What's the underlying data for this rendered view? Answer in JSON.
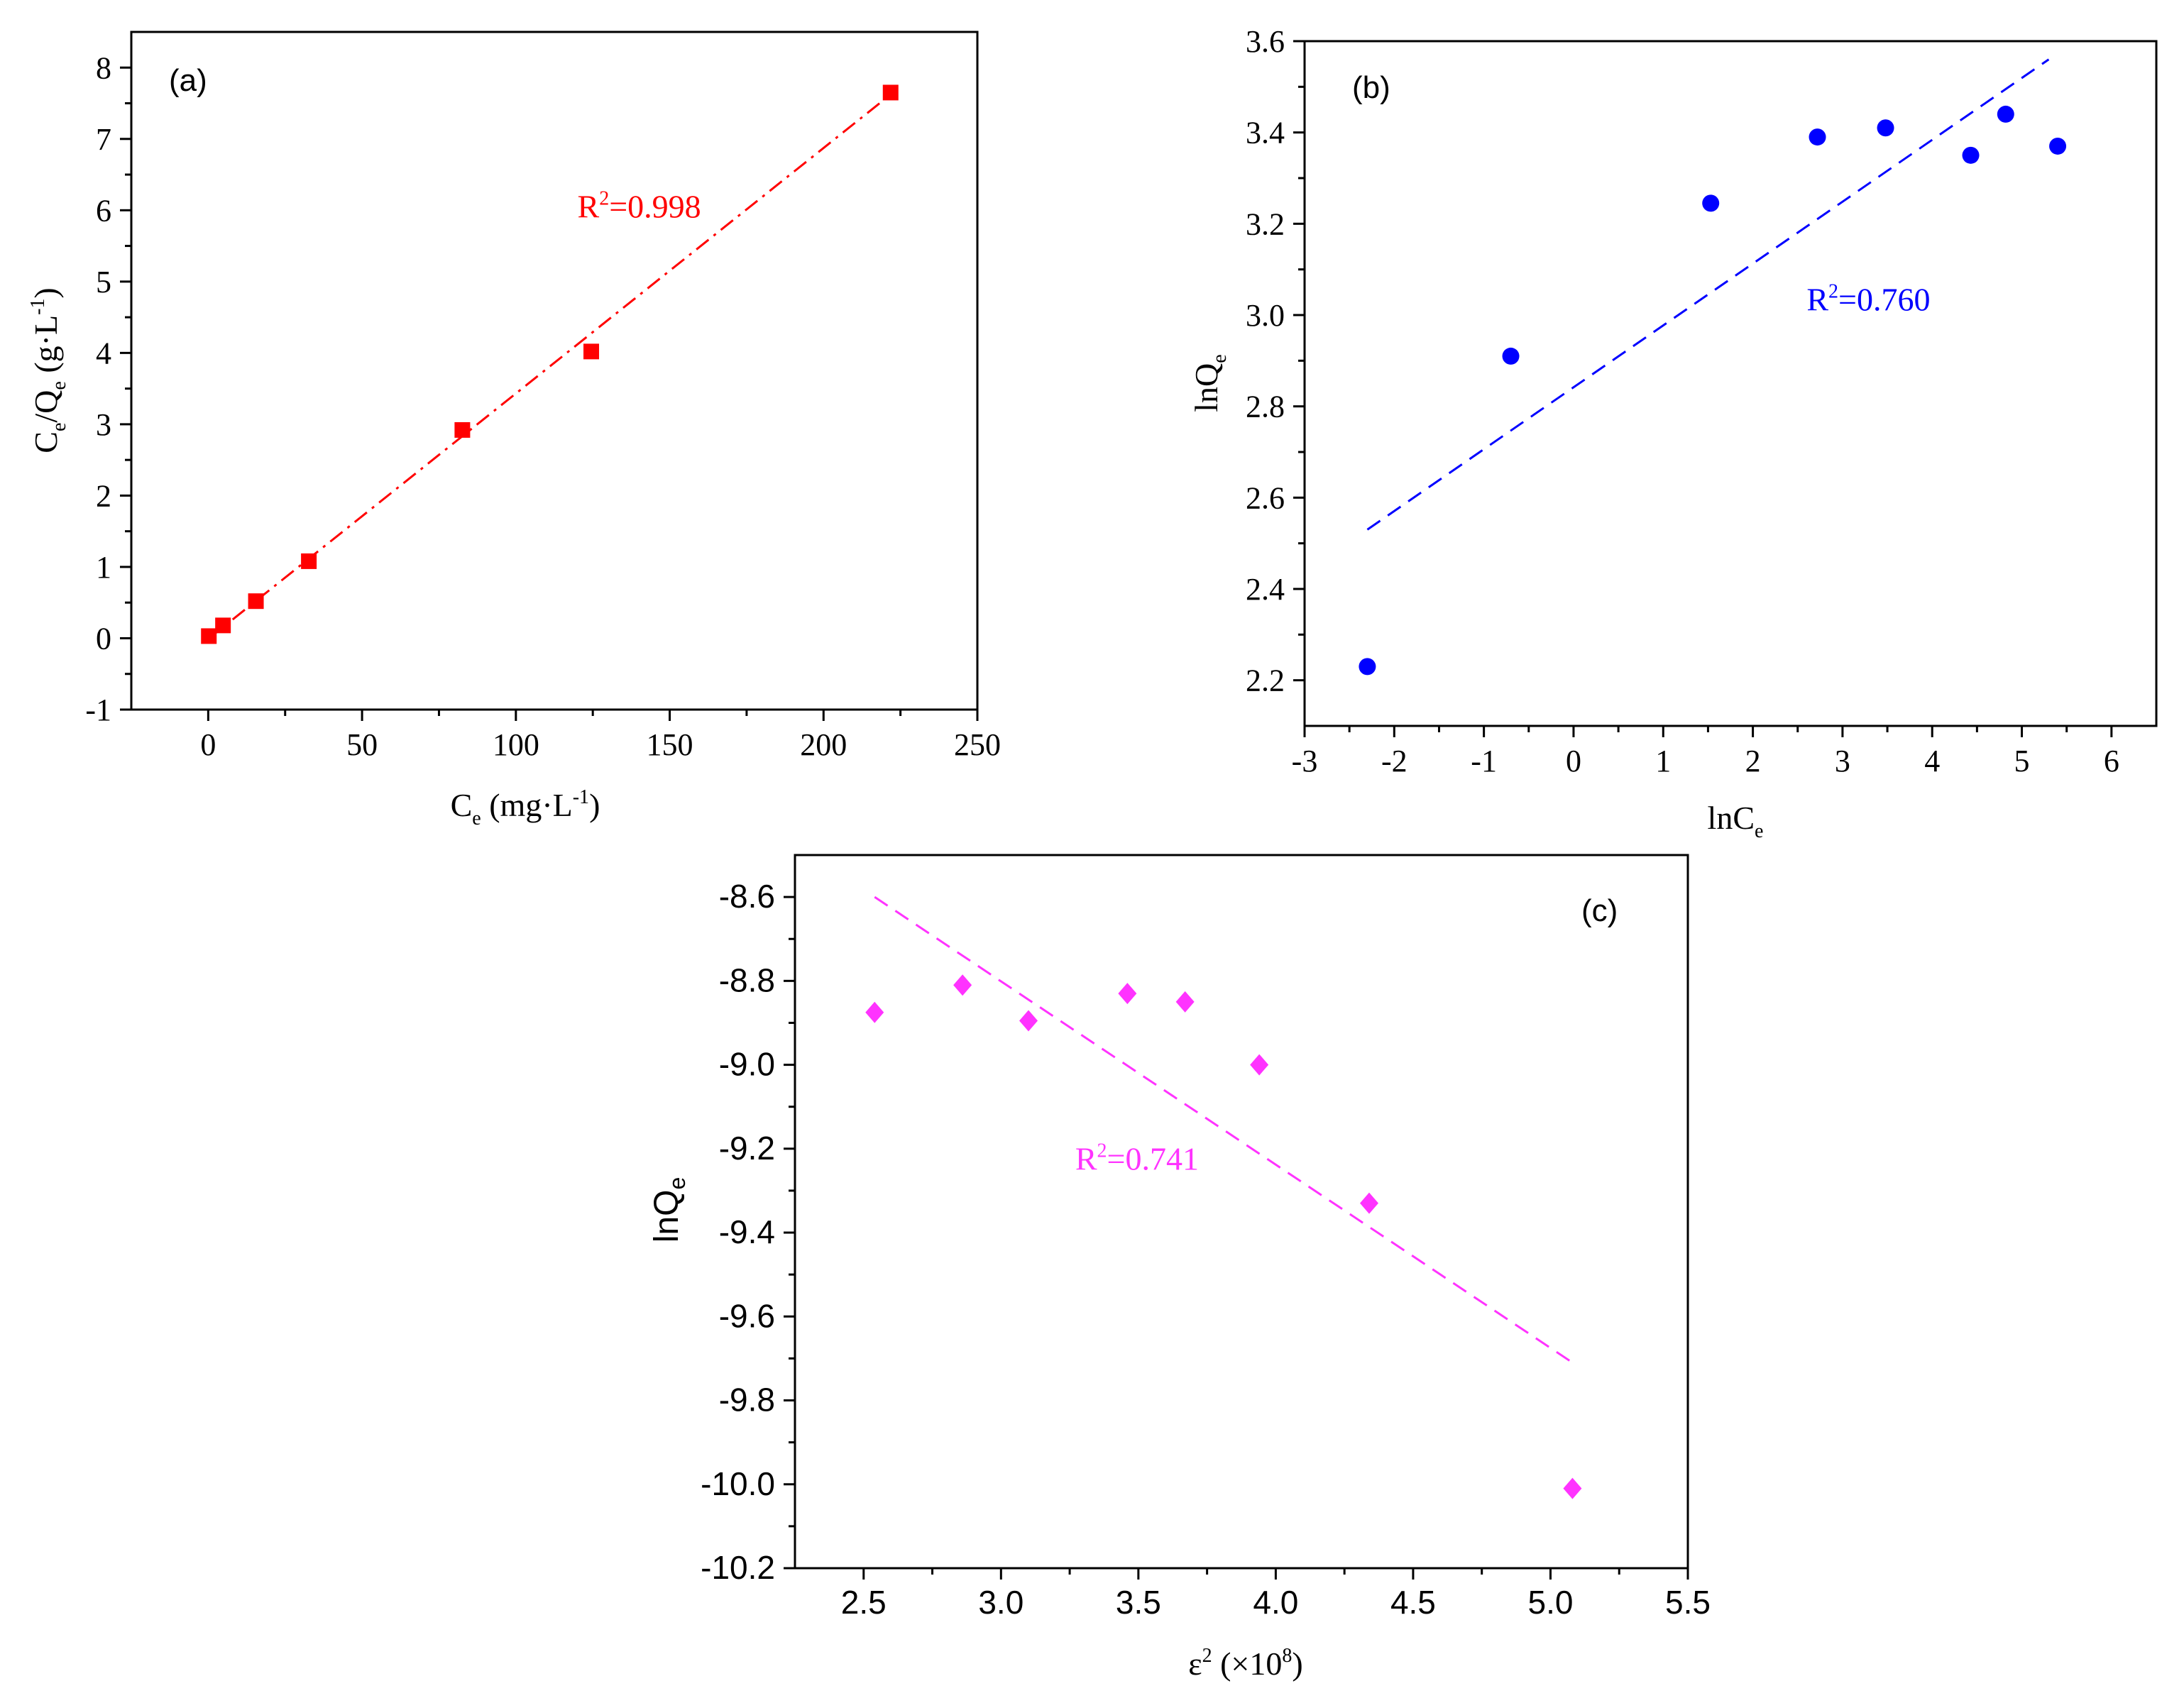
{
  "chart_data": [
    {
      "id": "a",
      "type": "scatter",
      "panel_label": "(a)",
      "xlabel": "Ce (mg·L-1)",
      "ylabel": "Ce/Qe (g·L-1)",
      "xlim": [
        -25,
        250
      ],
      "ylim": [
        -1,
        8.5
      ],
      "xticks": [
        0,
        50,
        100,
        150,
        200,
        250
      ],
      "yticks": [
        -1,
        0,
        1,
        2,
        3,
        4,
        5,
        6,
        7,
        8
      ],
      "tick_decimals": 0,
      "tick_font": "serif",
      "marker": "square",
      "color": "#ff0000",
      "series": [
        {
          "name": "data",
          "x": [
            0.2,
            4.8,
            15.5,
            32.7,
            82.6,
            124.5,
            221.8
          ],
          "y": [
            0.03,
            0.18,
            0.52,
            1.08,
            2.92,
            4.02,
            7.65
          ]
        }
      ],
      "fit": {
        "x": [
          0,
          222
        ],
        "y": [
          -0.01,
          7.63
        ],
        "style": "dash-dot"
      },
      "annotation": "R2=0.998",
      "annotation_pos": [
        120,
        5.9
      ]
    },
    {
      "id": "b",
      "type": "scatter",
      "panel_label": "(b)",
      "xlabel": "lnCe",
      "ylabel": "lnQe",
      "xlim": [
        -3,
        6.5
      ],
      "ylim": [
        2.1,
        3.6
      ],
      "xticks": [
        -3,
        -2,
        -1,
        0,
        1,
        2,
        3,
        4,
        5,
        6
      ],
      "yticks": [
        2.2,
        2.4,
        2.6,
        2.8,
        3.0,
        3.2,
        3.4,
        3.6
      ],
      "tick_decimals_y": 1,
      "tick_font": "serif",
      "marker": "circle",
      "color": "#0000ff",
      "series": [
        {
          "name": "data",
          "x": [
            -2.3,
            -0.7,
            1.53,
            2.72,
            3.48,
            4.43,
            4.82,
            5.4
          ],
          "y": [
            2.23,
            2.91,
            3.245,
            3.39,
            3.41,
            3.35,
            3.44,
            3.37
          ]
        }
      ],
      "fit": {
        "x": [
          -2.3,
          5.3
        ],
        "y": [
          2.53,
          3.56
        ],
        "style": "dash"
      },
      "annotation": "R2=0.760",
      "annotation_pos": [
        2.6,
        3.01
      ]
    },
    {
      "id": "c",
      "type": "scatter",
      "panel_label": "(c)",
      "xlabel": "ε2 (×108)",
      "ylabel": "lnQe",
      "xlim": [
        2.25,
        5.5
      ],
      "ylim": [
        -10.2,
        -8.5
      ],
      "xticks": [
        2.5,
        3.0,
        3.5,
        4.0,
        4.5,
        5.0,
        5.5
      ],
      "yticks": [
        -8.6,
        -8.8,
        -9.0,
        -9.2,
        -9.4,
        -9.6,
        -9.8,
        -10.0,
        -10.2
      ],
      "tick_decimals": 1,
      "tick_font": "sans",
      "marker": "diamond",
      "color": "#ff33ff",
      "series": [
        {
          "name": "data",
          "x": [
            2.54,
            2.86,
            3.1,
            3.46,
            3.67,
            3.94,
            4.34,
            5.08
          ],
          "y": [
            -8.875,
            -8.81,
            -8.895,
            -8.83,
            -8.85,
            -9.0,
            -9.33,
            -10.01
          ]
        }
      ],
      "fit": {
        "x": [
          2.54,
          5.08
        ],
        "y": [
          -8.6,
          -9.71
        ],
        "style": "dash"
      },
      "annotation": "R2=0.741",
      "annotation_pos": [
        3.27,
        -9.25
      ]
    }
  ]
}
